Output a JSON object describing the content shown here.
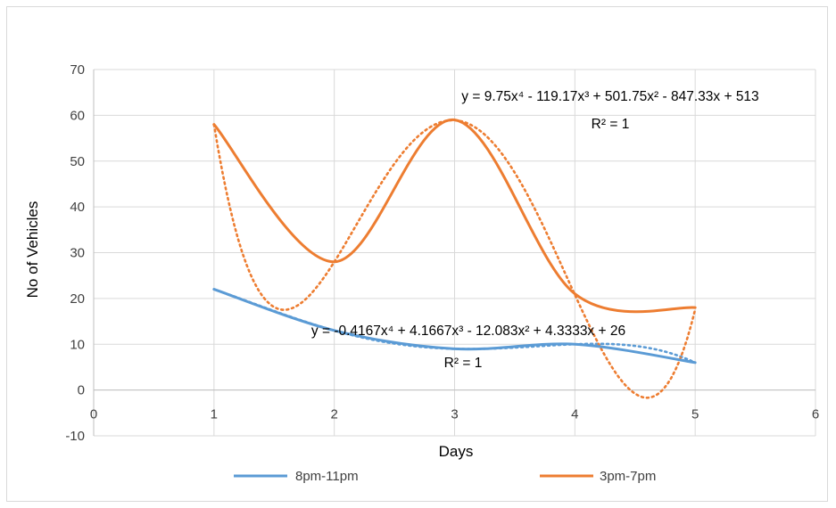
{
  "chart_data": {
    "type": "line",
    "xlabel": "Days",
    "ylabel": "No of Vehicles",
    "xlim": [
      0,
      6
    ],
    "ylim": [
      -10,
      70
    ],
    "x_ticks": [
      "0",
      "1",
      "2",
      "3",
      "4",
      "5",
      "6"
    ],
    "y_ticks": [
      "70",
      "60",
      "50",
      "40",
      "30",
      "20",
      "10",
      "0",
      "-10"
    ],
    "grid": true,
    "legend_position": "bottom",
    "x": [
      1,
      2,
      3,
      4,
      5
    ],
    "series": [
      {
        "name": "8pm-11pm",
        "color": "#5b9bd5",
        "values": [
          22,
          13,
          9,
          10,
          6
        ],
        "trendline": {
          "type": "polynomial",
          "coefficients": [
            -0.4167,
            4.1667,
            -12.083,
            4.3333,
            26
          ],
          "equation": "y = -0.4167x⁴ + 4.1667x³ - 12.083x² + 4.3333x + 26",
          "r2": "R² = 1"
        }
      },
      {
        "name": "3pm-7pm",
        "color": "#ed7d31",
        "values": [
          58,
          28,
          59,
          21,
          18
        ],
        "trendline": {
          "type": "polynomial",
          "coefficients": [
            9.75,
            -119.17,
            501.75,
            -847.33,
            513
          ],
          "equation": "y = 9.75x⁴ - 119.17x³ + 501.75x² - 847.33x + 513",
          "r2": "R² = 1"
        }
      }
    ]
  }
}
